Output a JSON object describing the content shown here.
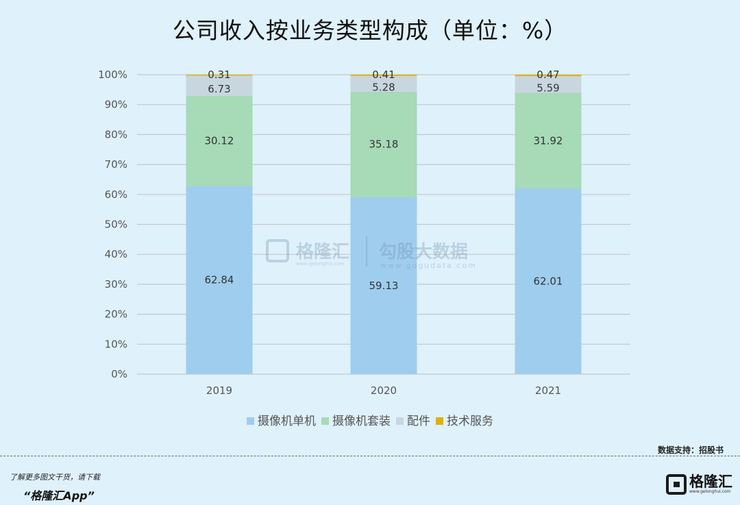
{
  "chart_data": {
    "type": "bar",
    "stacked": true,
    "title": "公司收入按业务类型构成（单位：%）",
    "categories": [
      "2019",
      "2020",
      "2021"
    ],
    "series": [
      {
        "name": "摄像机单机",
        "values": [
          62.84,
          59.13,
          62.01
        ],
        "color": "#9fcdee"
      },
      {
        "name": "摄像机套装",
        "values": [
          30.12,
          35.18,
          31.92
        ],
        "color": "#a7dab6"
      },
      {
        "name": "配件",
        "values": [
          6.73,
          5.28,
          5.59
        ],
        "color": "#c8d6df"
      },
      {
        "name": "技术服务",
        "values": [
          0.31,
          0.41,
          0.47
        ],
        "color": "#e0b100"
      }
    ],
    "y_ticks": [
      "0%",
      "10%",
      "20%",
      "30%",
      "40%",
      "50%",
      "60%",
      "70%",
      "80%",
      "90%",
      "100%"
    ],
    "ylim": [
      0,
      100
    ],
    "grid": true,
    "legend_position": "bottom"
  },
  "source": "数据支持：招股书",
  "promo": {
    "line1": "了解更多图文干货，请下载",
    "line2": "“格隆汇App”"
  },
  "watermark": {
    "name": "格隆汇",
    "name_sub": "www.gelonghui.com",
    "brand": "勾股大数据",
    "brand_sub": "www.gogudata.com"
  },
  "logo": {
    "name": "格隆汇",
    "sub": "www.gelonghui.com"
  }
}
